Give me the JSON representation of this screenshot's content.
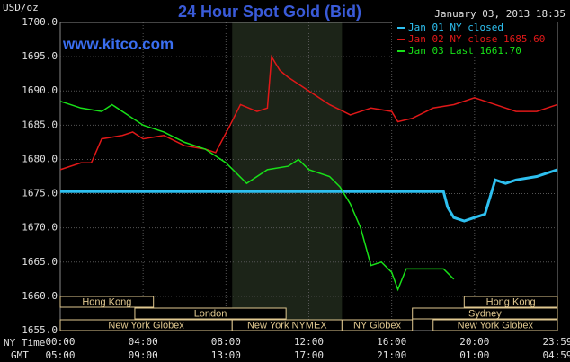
{
  "chart_data": {
    "type": "line",
    "title": "24 Hour Spot Gold (Bid)",
    "timestamp": "January 03, 2013 18:35",
    "watermark": "www.kitco.com",
    "ylabel": "USD/oz",
    "x_row_labels": [
      "NY Time",
      "GMT"
    ],
    "xlim": [
      0,
      24
    ],
    "ylim": [
      1655,
      1700
    ],
    "xticks": [
      {
        "value": 0,
        "label": "00:00"
      },
      {
        "value": 4,
        "label": "04:00"
      },
      {
        "value": 8,
        "label": "08:00"
      },
      {
        "value": 12,
        "label": "12:00"
      },
      {
        "value": 16,
        "label": "16:00"
      },
      {
        "value": 20,
        "label": "20:00"
      },
      {
        "value": 24,
        "label": "23:59"
      }
    ],
    "gmt_ticks": [
      {
        "value": 0,
        "label": "05:00"
      },
      {
        "value": 4,
        "label": "09:00"
      },
      {
        "value": 8,
        "label": "13:00"
      },
      {
        "value": 12,
        "label": "17:00"
      },
      {
        "value": 16,
        "label": "21:00"
      },
      {
        "value": 20,
        "label": "01:00"
      },
      {
        "value": 24,
        "label": "04:59"
      }
    ],
    "yticks": [
      {
        "value": 1655,
        "label": "1655.0"
      },
      {
        "value": 1660,
        "label": "1660.0"
      },
      {
        "value": 1665,
        "label": "1665.0"
      },
      {
        "value": 1670,
        "label": "1670.0"
      },
      {
        "value": 1675,
        "label": "1675.0"
      },
      {
        "value": 1680,
        "label": "1680.0"
      },
      {
        "value": 1685,
        "label": "1685.0"
      },
      {
        "value": 1690,
        "label": "1690.0"
      },
      {
        "value": 1695,
        "label": "1695.0"
      },
      {
        "value": 1700,
        "label": "1700.0"
      }
    ],
    "grid": true,
    "sessions": [
      {
        "name": "Hong Kong",
        "start": 0,
        "end": 4.5
      },
      {
        "name": "Hong Kong",
        "start": 19.5,
        "end": 24
      },
      {
        "name": "London",
        "start": 3.6,
        "end": 10.9
      },
      {
        "name": "Sydney",
        "start": 17,
        "end": 24
      },
      {
        "name": "New York Globex",
        "start": 0,
        "end": 8.3
      },
      {
        "name": "New York NYMEX",
        "start": 8.3,
        "end": 13.6
      },
      {
        "name": "NY Globex",
        "start": 13.6,
        "end": 17
      },
      {
        "name": "New York Globex",
        "start": 18,
        "end": 24
      }
    ],
    "series": [
      {
        "name": "Jan 01 NY closed",
        "color": "#2ec0f0",
        "x": [
          0,
          18.5,
          18.7,
          19,
          19.5,
          20,
          20.5,
          21,
          21.5,
          22,
          23,
          24
        ],
        "values": [
          1675.3,
          1675.3,
          1673,
          1671.5,
          1671,
          1671.5,
          1672,
          1677,
          1676.5,
          1677,
          1677.5,
          1678.5
        ]
      },
      {
        "name": "Jan 02 NY close 1685.60",
        "color": "#e01818",
        "x": [
          0,
          1,
          1.5,
          2,
          3,
          3.5,
          4,
          5,
          6,
          7,
          7.5,
          8.2,
          8.7,
          9.5,
          10,
          10.2,
          10.6,
          11,
          12,
          13,
          14,
          15,
          16,
          16.3,
          17,
          18,
          19,
          20,
          21,
          22,
          23,
          24
        ],
        "values": [
          1678.5,
          1679.5,
          1679.5,
          1683,
          1683.5,
          1684,
          1683,
          1683.5,
          1682,
          1681.5,
          1681,
          1685,
          1688,
          1687,
          1687.5,
          1695,
          1693,
          1692,
          1690,
          1688,
          1686.5,
          1687.5,
          1687,
          1685.5,
          1686,
          1687.5,
          1688,
          1689,
          1688,
          1687,
          1687,
          1688
        ]
      },
      {
        "name": "Jan 03 Last 1661.70",
        "color": "#18e018",
        "x": [
          0,
          1,
          2,
          2.5,
          3.5,
          4,
          5,
          6,
          7,
          8,
          8.5,
          9,
          10,
          11,
          11.5,
          12,
          13,
          13.5,
          14,
          14.5,
          15,
          15.5,
          16,
          16.3,
          16.7,
          17.5,
          18.5,
          19
        ],
        "values": [
          1688.5,
          1687.5,
          1687,
          1688,
          1686,
          1685,
          1684,
          1682.5,
          1681.5,
          1679.5,
          1678,
          1676.5,
          1678.5,
          1679,
          1680,
          1678.5,
          1677.5,
          1676,
          1673.5,
          1670,
          1664.5,
          1665,
          1663.5,
          1661,
          1664,
          1664,
          1664,
          1662.5
        ]
      }
    ]
  }
}
